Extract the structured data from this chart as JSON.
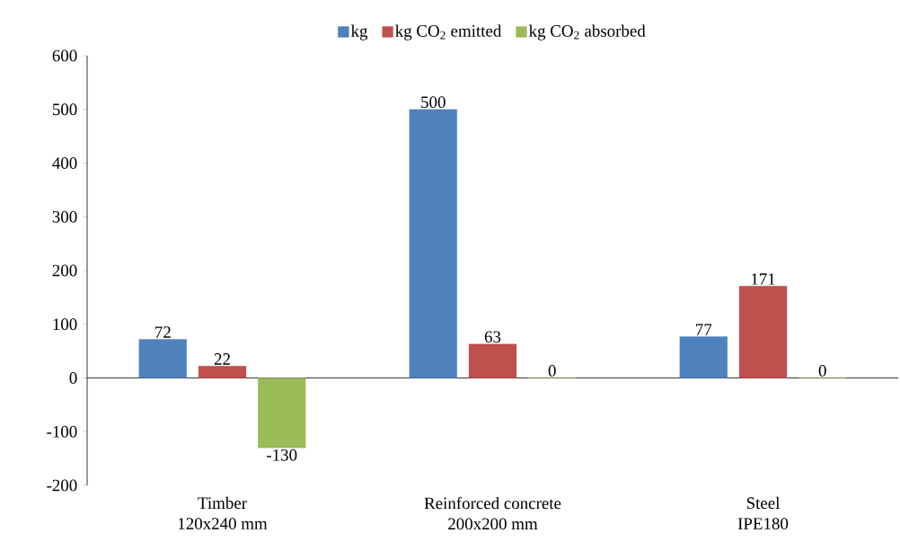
{
  "chart_data": {
    "type": "bar",
    "categories": [
      "Timber\n120x240 mm",
      "Reinforced concrete\n200x200 mm",
      "Steel\nIPE180"
    ],
    "series": [
      {
        "name": "kg",
        "color": "#4f81bd",
        "values": [
          72,
          500,
          77
        ]
      },
      {
        "name": "kg CO$_{2}$ emitted",
        "color": "#c0504d",
        "values": [
          22,
          63,
          171
        ]
      },
      {
        "name": "kg CO$_{2}$ absorbed",
        "color": "#9bbb59",
        "values": [
          -130,
          0,
          0
        ]
      }
    ],
    "ylim": [
      -200,
      600
    ],
    "yticks": [
      -200,
      -100,
      0,
      100,
      200,
      300,
      400,
      500,
      600
    ],
    "data_labels": true,
    "legend": "top"
  }
}
